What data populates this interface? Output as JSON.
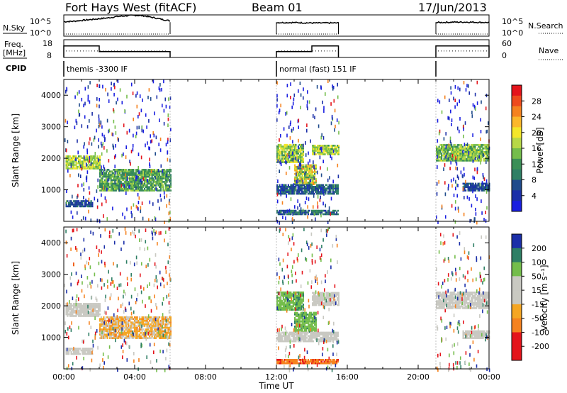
{
  "header": {
    "station": "Fort Hays West (fitACF)",
    "beam": "Beam 01",
    "date": "17/Jun/2013"
  },
  "aux_panels": {
    "nsky_label": "N.Sky",
    "nsearch_label": "N.Search",
    "freq_label_line1": "Freq.",
    "freq_label_line2": "[MHz]",
    "nave_label": "Nave",
    "cpid_label": "CPID",
    "noise_ticks": [
      "10^5",
      "10^0"
    ],
    "noise_ticks_right": [
      "10^5",
      "10^0"
    ],
    "freq_ticks": [
      "18",
      "8"
    ],
    "nave_ticks": [
      "60",
      "0"
    ]
  },
  "cpid_segments": [
    {
      "start": 0,
      "end": 6,
      "label": "themis -3300 IF"
    },
    {
      "start": 12,
      "end": 15.5,
      "label": "normal (fast) 151 IF"
    },
    {
      "start": 21,
      "end": 24,
      "label": ""
    }
  ],
  "colorbars": {
    "power": {
      "title": "Power [dB]",
      "ticks": [
        "28",
        "24",
        "20",
        "16",
        "12",
        "8",
        "4"
      ],
      "colors": [
        "#e4141b",
        "#ee4a1c",
        "#f5821f",
        "#fbb72b",
        "#f3e62a",
        "#b7d847",
        "#74bd4b",
        "#3b8f57",
        "#2f7f65",
        "#1f4b8c",
        "#1b2fa8",
        "#1a1fe0"
      ]
    },
    "velocity": {
      "title": "Velocity [m s⁻¹]",
      "ticks": [
        "200",
        "100",
        "50",
        "15",
        "-15",
        "-50",
        "-100",
        "-200"
      ],
      "colors": [
        "#1b2fa8",
        "#2f7f65",
        "#74bd4b",
        "#c9c9c2",
        "#c9c9c2",
        "#f5a623",
        "#f5821f",
        "#e4141b",
        "#e4141b"
      ]
    }
  },
  "chart_data": [
    {
      "type": "line",
      "panel": "noise",
      "series": [
        {
          "name": "N.Sky",
          "x": [
            0,
            0.5,
            1,
            1.5,
            2,
            2.5,
            3,
            3.5,
            4,
            4.5,
            5,
            5.5,
            6,
            12,
            13,
            14,
            15,
            15.5,
            21,
            22,
            23,
            24
          ],
          "y": [
            3.4,
            3.5,
            3.7,
            3.9,
            4.1,
            4.3,
            4.6,
            4.8,
            4.9,
            4.8,
            4.4,
            4.0,
            3.6,
            3.2,
            3.2,
            3.1,
            3.1,
            3.1,
            3.2,
            3.3,
            3.3,
            3.2
          ]
        },
        {
          "name": "N.Search",
          "x": [
            0,
            6,
            12,
            15.5,
            21,
            24
          ],
          "y": [
            0.5,
            0.5,
            0.5,
            0.5,
            0.5,
            0.5
          ]
        }
      ],
      "yscale": "log",
      "ylim_log10": [
        0,
        5
      ]
    },
    {
      "type": "line",
      "panel": "frequency",
      "series": [
        {
          "name": "Freq. [MHz]",
          "x": [
            0,
            2,
            2,
            6,
            12,
            14,
            14,
            15.5,
            21,
            24
          ],
          "y": [
            14.5,
            14.5,
            11.3,
            11.3,
            11.3,
            11.3,
            14.5,
            14.5,
            14.5,
            14.5
          ]
        },
        {
          "name": "Nave",
          "x": [
            0,
            6,
            12,
            15.5,
            21,
            24
          ],
          "y": [
            22,
            22,
            22,
            22,
            22,
            22
          ]
        }
      ],
      "ylim": [
        8,
        18
      ],
      "y2lim": [
        0,
        60
      ]
    },
    {
      "type": "heatmap",
      "panel": "power",
      "xlabel": "",
      "ylabel": "Slant Range [km]",
      "xlim": [
        0,
        24
      ],
      "ylim": [
        0,
        4500
      ],
      "yticks": [
        1000,
        2000,
        3000,
        4000
      ],
      "zlim": [
        0,
        30
      ],
      "bands": [
        {
          "t0": 0.1,
          "t1": 2.0,
          "r0": 1650,
          "r1": 2050,
          "z0": 12,
          "z1": 20
        },
        {
          "t0": 0.1,
          "t1": 1.6,
          "r0": 450,
          "r1": 650,
          "z0": 4,
          "z1": 8
        },
        {
          "t0": 2.0,
          "t1": 6.0,
          "r0": 950,
          "r1": 1650,
          "z0": 8,
          "z1": 16
        },
        {
          "t0": 12.0,
          "t1": 13.5,
          "r0": 1850,
          "r1": 2450,
          "z0": 10,
          "z1": 20
        },
        {
          "t0": 13.0,
          "t1": 14.2,
          "r0": 1150,
          "r1": 1800,
          "z0": 10,
          "z1": 24
        },
        {
          "t0": 14.0,
          "t1": 15.5,
          "r0": 2100,
          "r1": 2400,
          "z0": 12,
          "z1": 20
        },
        {
          "t0": 12.0,
          "t1": 15.5,
          "r0": 850,
          "r1": 1150,
          "z0": 4,
          "z1": 10
        },
        {
          "t0": 12.0,
          "t1": 15.5,
          "r0": 200,
          "r1": 350,
          "z0": 4,
          "z1": 12
        },
        {
          "t0": 21.0,
          "t1": 24.0,
          "r0": 1900,
          "r1": 2450,
          "z0": 10,
          "z1": 18
        },
        {
          "t0": 22.5,
          "t1": 24.0,
          "r0": 950,
          "r1": 1200,
          "z0": 4,
          "z1": 8
        }
      ]
    },
    {
      "type": "heatmap",
      "panel": "velocity",
      "xlabel": "Time UT",
      "ylabel": "Slant Range [km]",
      "xlim": [
        0,
        24
      ],
      "ylim": [
        0,
        4500
      ],
      "yticks": [
        1000,
        2000,
        3000,
        4000
      ],
      "xticks": [
        "00:00",
        "04:00",
        "08:00",
        "12:00",
        "16:00",
        "20:00",
        "00:00"
      ],
      "zlim": [
        -250,
        250
      ],
      "bands": [
        {
          "t0": 0.1,
          "t1": 2.0,
          "r0": 1650,
          "r1": 2050,
          "z0": -12,
          "z1": 12
        },
        {
          "t0": 0.1,
          "t1": 1.6,
          "r0": 450,
          "r1": 650,
          "z0": -12,
          "z1": 12
        },
        {
          "t0": 2.0,
          "t1": 6.0,
          "r0": 950,
          "r1": 1650,
          "z0": -60,
          "z1": 10
        },
        {
          "t0": 12.0,
          "t1": 13.5,
          "r0": 1850,
          "r1": 2450,
          "z0": 20,
          "z1": 80
        },
        {
          "t0": 13.0,
          "t1": 14.2,
          "r0": 1150,
          "r1": 1800,
          "z0": 20,
          "z1": 80
        },
        {
          "t0": 14.0,
          "t1": 15.5,
          "r0": 2000,
          "r1": 2400,
          "z0": -12,
          "z1": 12
        },
        {
          "t0": 12.0,
          "t1": 15.5,
          "r0": 850,
          "r1": 1150,
          "z0": -12,
          "z1": 12
        },
        {
          "t0": 12.0,
          "t1": 15.5,
          "r0": 150,
          "r1": 300,
          "z0": -120,
          "z1": -50
        },
        {
          "t0": 21.0,
          "t1": 24.0,
          "r0": 1900,
          "r1": 2450,
          "z0": -12,
          "z1": 12
        },
        {
          "t0": 22.5,
          "t1": 24.0,
          "r0": 950,
          "r1": 1200,
          "z0": -12,
          "z1": 12
        }
      ]
    }
  ]
}
